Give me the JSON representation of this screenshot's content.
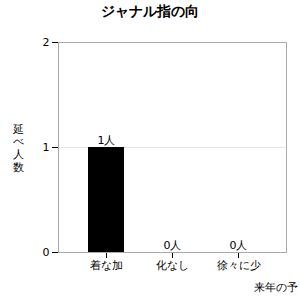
{
  "chart_data": {
    "type": "bar",
    "title": "ジャナル指の向",
    "categories": [
      "着な加",
      "化なし",
      "徐々に少"
    ],
    "values": [
      1,
      0,
      0
    ],
    "value_labels": [
      "1人",
      "0人",
      "0人"
    ],
    "data_labels": true,
    "ylabel": "延\nべ\n人\n数",
    "xlabel": "来年の予",
    "ylim": [
      0,
      2
    ],
    "yticks": [
      0,
      1,
      2
    ],
    "grid": true
  }
}
